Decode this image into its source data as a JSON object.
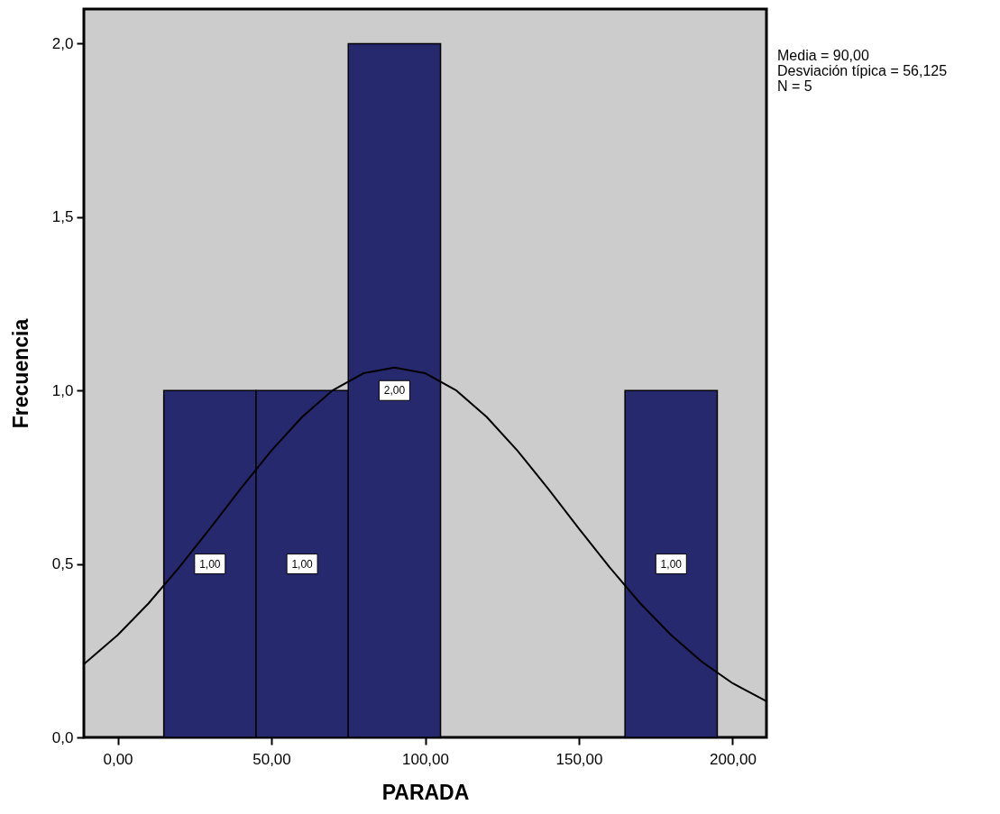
{
  "chart_data": {
    "type": "histogram",
    "xlabel": "PARADA",
    "ylabel": "Frecuencia",
    "bins": [
      15,
      45,
      75,
      105,
      135,
      165,
      195
    ],
    "values": [
      1,
      1,
      2,
      0,
      0,
      1
    ],
    "color": "#27296f",
    "value_labels": [
      "1,00",
      "1,00",
      "2,00",
      null,
      null,
      "1,00"
    ],
    "xlim": [
      -11,
      211
    ],
    "xticks": [
      {
        "value": 0,
        "label": "0,00"
      },
      {
        "value": 50,
        "label": "50,00"
      },
      {
        "value": 100,
        "label": "100,00"
      },
      {
        "value": 150,
        "label": "150,00"
      },
      {
        "value": 200,
        "label": "200,00"
      }
    ],
    "ylim": [
      0,
      2.1
    ],
    "yticks": [
      {
        "value": 0,
        "label": "0,0"
      },
      {
        "value": 0.5,
        "label": "0,5"
      },
      {
        "value": 1,
        "label": "1,0"
      },
      {
        "value": 1.5,
        "label": "1,5"
      },
      {
        "value": 2,
        "label": "2,0"
      }
    ],
    "grid": false,
    "series": [
      {
        "type": "line",
        "color": "#000000",
        "x": [
          -11,
          0,
          10,
          20,
          30,
          40,
          50,
          60,
          70,
          80,
          90,
          100,
          110,
          120,
          130,
          140,
          150,
          160,
          170,
          180,
          190,
          200,
          211
        ],
        "values": [
          0.211,
          0.295,
          0.386,
          0.49,
          0.602,
          0.717,
          0.827,
          0.924,
          1.001,
          1.05,
          1.066,
          1.05,
          1.001,
          0.924,
          0.827,
          0.717,
          0.602,
          0.49,
          0.386,
          0.295,
          0.218,
          0.156,
          0.104
        ]
      }
    ],
    "annotations": [
      "Media = 90,00",
      "Desviación típica = 56,125",
      "N = 5"
    ]
  }
}
